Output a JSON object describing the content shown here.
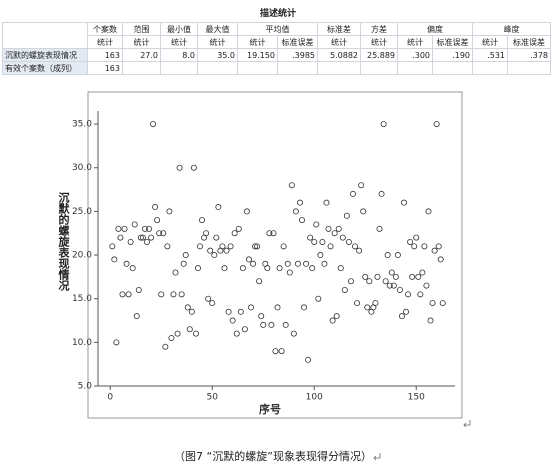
{
  "table": {
    "title": "描述统计",
    "header_top": [
      "个案数",
      "范围",
      "最小值",
      "最大值",
      "平均值",
      "标准差",
      "方差",
      "偏度",
      "峰度"
    ],
    "header_sub": [
      "统计",
      "统计",
      "统计",
      "统计",
      "统计",
      "标准误差",
      "统计",
      "统计",
      "统计",
      "标准误差",
      "统计",
      "标准误差"
    ],
    "rows": [
      {
        "label": "沉默的螺旋表现情况",
        "cells": [
          "163",
          "27.0",
          "8.0",
          "35.0",
          "19.150",
          ".3985",
          "5.0882",
          "25.889",
          ".300",
          ".190",
          ".531",
          ".378"
        ]
      },
      {
        "label": "有效个案数（成列）",
        "cells": [
          "163"
        ]
      }
    ]
  },
  "chart_data": {
    "type": "scatter",
    "x_label": "序号",
    "y_label": "沉默的螺旋表现情况",
    "xlim": [
      -6,
      169
    ],
    "xticks": [
      0,
      50,
      100,
      150
    ],
    "ylim": [
      5,
      36.5
    ],
    "yticks": [
      {
        "value": 5,
        "label": "5.0"
      },
      {
        "value": 10,
        "label": "10.0"
      },
      {
        "value": 15,
        "label": "15.0"
      },
      {
        "value": 20,
        "label": "20.0"
      },
      {
        "value": 25,
        "label": "25.0"
      },
      {
        "value": 30,
        "label": "30.0"
      },
      {
        "value": 35,
        "label": "35.0"
      }
    ],
    "color": "#333333",
    "x": [
      1,
      2,
      3,
      4,
      5,
      6,
      7,
      8,
      9,
      10,
      11,
      12,
      13,
      14,
      15,
      16,
      17,
      18,
      19,
      20,
      21,
      22,
      23,
      24,
      25,
      26,
      27,
      28,
      29,
      30,
      31,
      32,
      33,
      34,
      35,
      36,
      37,
      38,
      39,
      40,
      41,
      42,
      43,
      44,
      45,
      46,
      47,
      48,
      49,
      50,
      51,
      52,
      53,
      54,
      55,
      56,
      57,
      58,
      59,
      60,
      61,
      62,
      63,
      64,
      65,
      66,
      67,
      68,
      69,
      70,
      71,
      72,
      73,
      74,
      75,
      76,
      77,
      78,
      79,
      80,
      81,
      82,
      83,
      84,
      85,
      86,
      87,
      88,
      89,
      90,
      91,
      92,
      93,
      94,
      95,
      96,
      97,
      98,
      99,
      100,
      101,
      102,
      103,
      104,
      105,
      106,
      107,
      108,
      109,
      110,
      111,
      112,
      113,
      114,
      115,
      116,
      117,
      118,
      119,
      120,
      121,
      122,
      123,
      124,
      125,
      126,
      127,
      128,
      129,
      130,
      131,
      132,
      133,
      134,
      135,
      136,
      137,
      138,
      139,
      140,
      141,
      142,
      143,
      144,
      145,
      146,
      147,
      148,
      149,
      150,
      151,
      152,
      153,
      154,
      155,
      156,
      157,
      158,
      159,
      160,
      161,
      162,
      163
    ],
    "values": [
      21,
      19.5,
      10,
      23,
      22,
      15.5,
      23,
      19,
      15.5,
      21.5,
      18.5,
      23.5,
      13,
      16,
      22,
      22,
      23,
      21.5,
      23,
      22,
      35,
      25.5,
      24,
      22.5,
      15.5,
      22.5,
      9.5,
      21,
      25,
      10.5,
      15.5,
      18,
      11,
      30,
      15.5,
      19,
      20,
      14,
      11.5,
      13.5,
      30,
      11,
      18.5,
      21,
      24,
      22,
      22.5,
      15,
      20.5,
      14.5,
      20,
      22,
      25.5,
      20.5,
      21,
      18.5,
      20.5,
      13.5,
      21,
      12.5,
      22.5,
      11,
      23,
      13.5,
      18.5,
      11.5,
      25,
      19.5,
      14,
      19,
      21,
      21,
      17,
      13,
      12,
      19,
      18.5,
      22.5,
      12,
      22.5,
      9,
      14,
      18.5,
      9,
      21,
      12,
      19,
      18,
      28,
      11,
      25,
      19,
      26,
      24,
      14,
      19,
      8,
      22,
      18.5,
      21.5,
      23.5,
      15,
      20,
      21.5,
      19,
      26,
      23,
      21,
      12.5,
      22.5,
      13,
      23,
      18.5,
      22,
      16,
      24.5,
      21.5,
      17,
      27,
      21,
      14.5,
      20.5,
      28,
      25,
      17.5,
      14,
      17,
      13.5,
      14,
      14.5,
      17.5,
      23,
      27,
      35,
      17,
      20,
      16.5,
      18,
      16.5,
      17.5,
      20,
      16,
      13,
      26,
      13.5,
      15.5,
      21.5,
      17.5,
      21,
      22,
      17.5,
      15.5,
      18,
      21,
      16.5,
      25,
      12.5,
      14.5,
      20.5,
      35,
      21,
      19.5,
      14.5
    ]
  },
  "caption": "（图7 “沉默的螺旋”现象表现得分情况）"
}
